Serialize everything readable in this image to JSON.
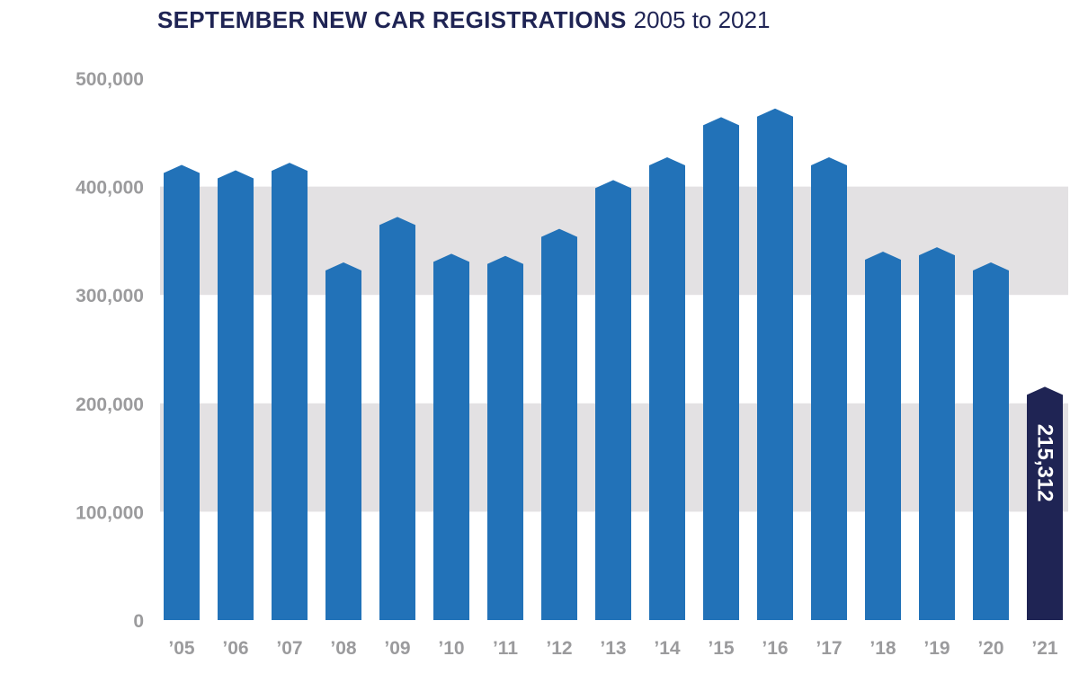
{
  "chart_data": {
    "type": "bar",
    "title": "SEPTEMBER NEW CAR REGISTRATIONS",
    "subtitle": "2005 to 2021",
    "xlabel": "",
    "ylabel": "",
    "ylim": [
      0,
      500000
    ],
    "yticks": [
      {
        "value": 0,
        "label": "0"
      },
      {
        "value": 100000,
        "label": "100,000"
      },
      {
        "value": 200000,
        "label": "200,000"
      },
      {
        "value": 300000,
        "label": "300,000"
      },
      {
        "value": 400000,
        "label": "400,000"
      },
      {
        "value": 500000,
        "label": "500,000"
      }
    ],
    "bands": [
      [
        100000,
        200000
      ],
      [
        300000,
        400000
      ]
    ],
    "categories": [
      "’05",
      "’06",
      "’07",
      "’08",
      "’09",
      "’10",
      "’11",
      "’12",
      "’13",
      "’14",
      "’15",
      "’16",
      "’17",
      "’18",
      "’19",
      "’20",
      "’21"
    ],
    "values": [
      420000,
      415000,
      422000,
      330000,
      372000,
      338000,
      336000,
      361000,
      406000,
      427000,
      464000,
      472000,
      427000,
      340000,
      344000,
      330000,
      215312
    ],
    "highlight_index": 16,
    "highlight_label": "215,312",
    "colors": {
      "bar": "#2272b8",
      "highlight": "#1f2454",
      "band": "#e3e1e3",
      "title": "#1f2454",
      "axis_text": "#9b9b9d"
    }
  }
}
